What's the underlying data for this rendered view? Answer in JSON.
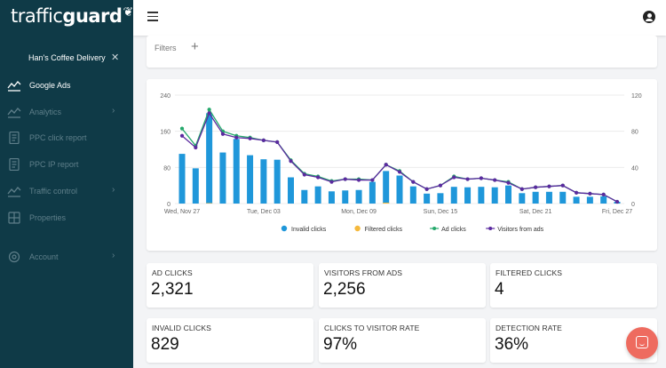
{
  "brand": {
    "light": "traffic",
    "bold": "guard"
  },
  "sidebar": {
    "account_name": "Han's Coffee Delivery",
    "close_glyph": "✕",
    "items": [
      {
        "label": "Google Ads",
        "icon": "trend-icon",
        "active": true
      },
      {
        "label": "Analytics",
        "icon": "trend-icon",
        "chevron": "›"
      },
      {
        "label": "PPC click report",
        "icon": "document-icon"
      },
      {
        "label": "PPC IP report",
        "icon": "document-icon"
      },
      {
        "label": "Traffic control",
        "icon": "trend-icon",
        "chevron": "›"
      },
      {
        "label": "Properties",
        "icon": "grid-icon"
      },
      {
        "label": "Account",
        "icon": "gear-icon",
        "chevron": "›"
      }
    ]
  },
  "filters": {
    "label": "Filters",
    "add": "+"
  },
  "chart_data": {
    "type": "bar",
    "x_tick_labels": [
      "Wed, Nov 27",
      "Tue, Dec 03",
      "Mon, Dec 09",
      "Sun, Dec 15",
      "Sat, Dec 21",
      "Fri, Dec 27"
    ],
    "ylim_left": [
      0,
      240
    ],
    "yticks_left": [
      "0",
      "80",
      "160",
      "240"
    ],
    "ylim_right": [
      0,
      120
    ],
    "yticks_right": [
      "0",
      "40",
      "80",
      "120"
    ],
    "legend_position": "bottom",
    "series": [
      {
        "name": "Invalid clicks",
        "type": "bar",
        "axis": "left",
        "color": "#1f97da",
        "values": [
          110,
          78,
          200,
          113,
          143,
          107,
          98,
          97,
          58,
          30,
          38,
          27,
          29,
          30,
          48,
          72,
          62,
          38,
          22,
          23,
          37,
          36,
          37,
          36,
          40,
          23,
          26,
          26,
          26,
          15,
          15,
          16,
          4
        ]
      },
      {
        "name": "Filtered clicks",
        "type": "bar",
        "axis": "left",
        "color": "#f5b93d",
        "values": [
          0,
          0,
          1,
          0,
          0,
          0,
          0,
          0,
          0,
          0,
          0,
          0,
          0,
          0,
          0,
          2,
          0,
          0,
          0,
          0,
          0,
          0,
          0,
          0,
          0,
          0,
          0,
          0,
          0,
          0,
          0,
          0,
          0
        ]
      },
      {
        "name": "Ad clicks",
        "type": "line",
        "axis": "right",
        "color": "#24a86b",
        "values": [
          83,
          64,
          104,
          80,
          75,
          73,
          70,
          68,
          48,
          33,
          30,
          25,
          27,
          27,
          26,
          43,
          36,
          24,
          16,
          20,
          30,
          27,
          28,
          26,
          24,
          16,
          18,
          19,
          20,
          12,
          11,
          10,
          2
        ]
      },
      {
        "name": "Visitors from ads",
        "type": "line",
        "axis": "right",
        "color": "#5b2a9f",
        "values": [
          75,
          62,
          100,
          77,
          73,
          72,
          70,
          68,
          47,
          32,
          29,
          24,
          27,
          26,
          26,
          43,
          35,
          24,
          16,
          20,
          29,
          27,
          28,
          26,
          23,
          16,
          18,
          19,
          20,
          12,
          11,
          10,
          2
        ]
      }
    ]
  },
  "stats": [
    {
      "title": "AD CLICKS",
      "value": "2,321"
    },
    {
      "title": "VISITORS FROM ADS",
      "value": "2,256"
    },
    {
      "title": "FILTERED CLICKS",
      "value": "4"
    },
    {
      "title": "INVALID CLICKS",
      "value": "829"
    },
    {
      "title": "CLICKS TO VISITOR RATE",
      "value": "97%"
    },
    {
      "title": "DETECTION RATE",
      "value": "36%"
    }
  ]
}
